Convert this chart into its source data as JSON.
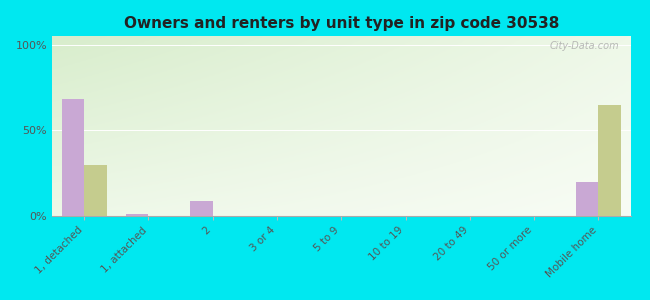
{
  "title": "Owners and renters by unit type in zip code 30538",
  "categories": [
    "1, detached",
    "1, attached",
    "2",
    "3 or 4",
    "5 to 9",
    "10 to 19",
    "20 to 49",
    "50 or more",
    "Mobile home"
  ],
  "owner_values": [
    68,
    1,
    9,
    0,
    0,
    0,
    0,
    0,
    20
  ],
  "renter_values": [
    30,
    0,
    0,
    0,
    0,
    0,
    0,
    0,
    65
  ],
  "owner_color": "#c9a8d4",
  "renter_color": "#c5cc8e",
  "outer_bg": "#00e8f0",
  "yticks": [
    0,
    50,
    100
  ],
  "ytick_labels": [
    "0%",
    "50%",
    "100%"
  ],
  "ylim": [
    0,
    105
  ],
  "bar_width": 0.35,
  "watermark": "City-Data.com",
  "bg_colors": [
    "#d8edcc",
    "#eef8e8",
    "#f5faf0",
    "#fafcf8"
  ],
  "title_fontsize": 11
}
